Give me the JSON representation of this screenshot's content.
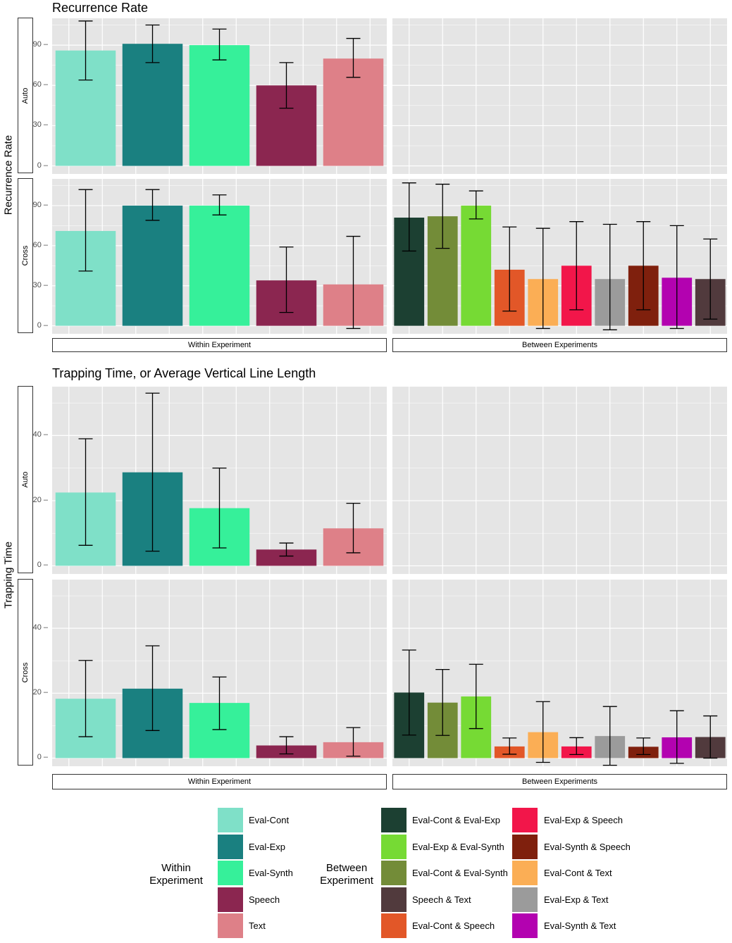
{
  "chart_data": [
    {
      "type": "bar",
      "title": "Recurrence Rate",
      "ylabel": "Recurrence Rate",
      "ylim": [
        -6,
        110
      ],
      "yticks": [
        0,
        30,
        60,
        90
      ],
      "columns": [
        "Within Experiment",
        "Between Experiments"
      ],
      "rows": [
        "Auto",
        "Cross"
      ],
      "panels": [
        {
          "row": "Auto",
          "column": "Within Experiment",
          "series": [
            {
              "name": "Eval-Cont",
              "value": 86,
              "low": 64,
              "high": 108
            },
            {
              "name": "Eval-Exp",
              "value": 91,
              "low": 77,
              "high": 105
            },
            {
              "name": "Eval-Synth",
              "value": 90,
              "low": 79,
              "high": 102
            },
            {
              "name": "Speech",
              "value": 60,
              "low": 43,
              "high": 77
            },
            {
              "name": "Text",
              "value": 80,
              "low": 66,
              "high": 95
            }
          ]
        },
        {
          "row": "Auto",
          "column": "Between Experiments",
          "series": []
        },
        {
          "row": "Cross",
          "column": "Within Experiment",
          "series": [
            {
              "name": "Eval-Cont",
              "value": 71,
              "low": 41,
              "high": 102
            },
            {
              "name": "Eval-Exp",
              "value": 90,
              "low": 79,
              "high": 102
            },
            {
              "name": "Eval-Synth",
              "value": 90,
              "low": 83,
              "high": 98
            },
            {
              "name": "Speech",
              "value": 34,
              "low": 10,
              "high": 59
            },
            {
              "name": "Text",
              "value": 31,
              "low": -2,
              "high": 67
            }
          ]
        },
        {
          "row": "Cross",
          "column": "Between Experiments",
          "series": [
            {
              "name": "Eval-Cont & Eval-Exp",
              "value": 81,
              "low": 56,
              "high": 107
            },
            {
              "name": "Eval-Cont & Eval-Synth",
              "value": 82,
              "low": 58,
              "high": 106
            },
            {
              "name": "Eval-Exp & Eval-Synth",
              "value": 90,
              "low": 80,
              "high": 101
            },
            {
              "name": "Eval-Cont & Speech",
              "value": 42,
              "low": 11,
              "high": 74
            },
            {
              "name": "Eval-Cont & Text",
              "value": 35,
              "low": -2,
              "high": 73
            },
            {
              "name": "Eval-Exp & Speech",
              "value": 45,
              "low": 12,
              "high": 78
            },
            {
              "name": "Eval-Exp & Text",
              "value": 35,
              "low": -3,
              "high": 76
            },
            {
              "name": "Eval-Synth & Speech",
              "value": 45,
              "low": 12,
              "high": 78
            },
            {
              "name": "Eval-Synth & Text",
              "value": 36,
              "low": -2,
              "high": 75
            },
            {
              "name": "Speech & Text",
              "value": 35,
              "low": 5,
              "high": 65
            }
          ]
        }
      ]
    },
    {
      "type": "bar",
      "title": "Trapping Time, or Average Vertical Line Length",
      "ylabel": "Trapping Time",
      "ylim": [
        -2.5,
        55
      ],
      "yticks": [
        0,
        20,
        40
      ],
      "columns": [
        "Within Experiment",
        "Between Experiments"
      ],
      "rows": [
        "Auto",
        "Cross"
      ],
      "panels": [
        {
          "row": "Auto",
          "column": "Within Experiment",
          "series": [
            {
              "name": "Eval-Cont",
              "value": 22.5,
              "low": 6.3,
              "high": 39
            },
            {
              "name": "Eval-Exp",
              "value": 28.7,
              "low": 4.5,
              "high": 53
            },
            {
              "name": "Eval-Synth",
              "value": 17.7,
              "low": 5.5,
              "high": 30
            },
            {
              "name": "Speech",
              "value": 5,
              "low": 3,
              "high": 7
            },
            {
              "name": "Text",
              "value": 11.5,
              "low": 4,
              "high": 19.2
            }
          ]
        },
        {
          "row": "Auto",
          "column": "Between Experiments",
          "series": []
        },
        {
          "row": "Cross",
          "column": "Within Experiment",
          "series": [
            {
              "name": "Eval-Cont",
              "value": 18.3,
              "low": 6.6,
              "high": 30.1
            },
            {
              "name": "Eval-Exp",
              "value": 21.4,
              "low": 8.5,
              "high": 34.6
            },
            {
              "name": "Eval-Synth",
              "value": 17,
              "low": 8.8,
              "high": 25
            },
            {
              "name": "Speech",
              "value": 3.9,
              "low": 1.3,
              "high": 6.6
            },
            {
              "name": "Text",
              "value": 4.9,
              "low": 0.6,
              "high": 9.4
            }
          ]
        },
        {
          "row": "Cross",
          "column": "Between Experiments",
          "series": [
            {
              "name": "Eval-Cont & Eval-Exp",
              "value": 20.2,
              "low": 7.1,
              "high": 33.3
            },
            {
              "name": "Eval-Cont & Eval-Synth",
              "value": 17.1,
              "low": 7,
              "high": 27.3
            },
            {
              "name": "Eval-Exp & Eval-Synth",
              "value": 19,
              "low": 9.1,
              "high": 28.9
            },
            {
              "name": "Eval-Cont & Speech",
              "value": 3.6,
              "low": 1.2,
              "high": 6.2
            },
            {
              "name": "Eval-Cont & Text",
              "value": 8,
              "low": -1.3,
              "high": 17.4
            },
            {
              "name": "Eval-Exp & Speech",
              "value": 3.6,
              "low": 1.1,
              "high": 6.3
            },
            {
              "name": "Eval-Exp & Text",
              "value": 6.8,
              "low": -2.2,
              "high": 15.9
            },
            {
              "name": "Eval-Synth & Speech",
              "value": 3.5,
              "low": 1.1,
              "high": 6.2
            },
            {
              "name": "Eval-Synth & Text",
              "value": 6.4,
              "low": -1.6,
              "high": 14.6
            },
            {
              "name": "Speech & Text",
              "value": 6.5,
              "low": 0,
              "high": 13
            }
          ]
        }
      ]
    }
  ],
  "colors": {
    "Eval-Cont": "#7fe0c8",
    "Eval-Exp": "#1a8080",
    "Eval-Synth": "#36f09a",
    "Speech": "#8b2650",
    "Text": "#de8088",
    "Eval-Cont & Eval-Exp": "#1c4032",
    "Eval-Exp & Eval-Synth": "#76da34",
    "Eval-Cont & Eval-Synth": "#738c38",
    "Speech & Text": "#513a3d",
    "Eval-Cont & Speech": "#e25728",
    "Eval-Exp & Speech": "#f2164a",
    "Eval-Synth & Speech": "#7f200d",
    "Eval-Cont & Text": "#fbae55",
    "Eval-Exp & Text": "#9b9b9b",
    "Eval-Synth & Text": "#b302b0"
  },
  "legend": {
    "within_title": "Within\nExperiment",
    "between_title": "Between\nExperiment",
    "within_items": [
      "Eval-Cont",
      "Eval-Exp",
      "Eval-Synth",
      "Speech",
      "Text"
    ],
    "between_col1": [
      "Eval-Cont & Eval-Exp",
      "Eval-Exp & Eval-Synth",
      "Eval-Cont & Eval-Synth",
      "Speech & Text",
      "Eval-Cont & Speech"
    ],
    "between_col2": [
      "Eval-Exp & Speech",
      "Eval-Synth & Speech",
      "Eval-Cont & Text",
      "Eval-Exp & Text",
      "Eval-Synth & Text"
    ]
  }
}
